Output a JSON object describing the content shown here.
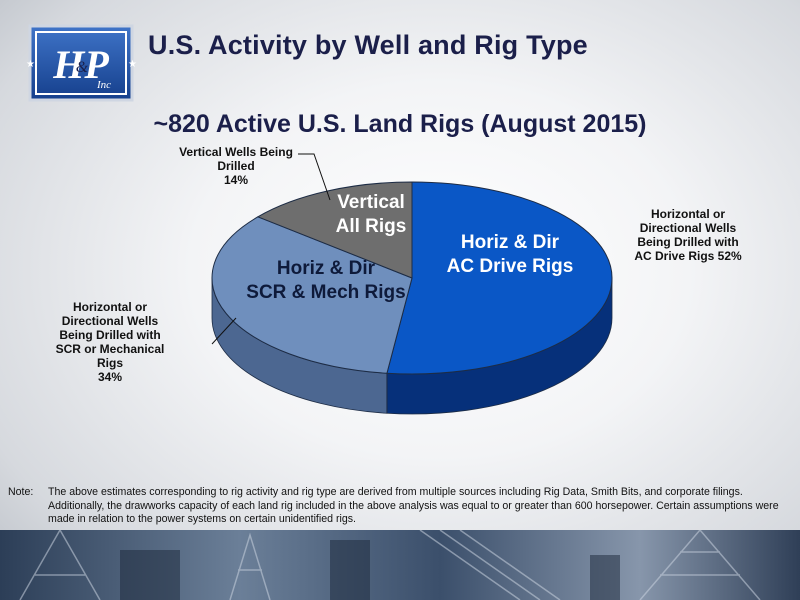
{
  "header": {
    "logo_text": "H&P Inc",
    "title": "U.S. Activity by Well and Rig Type"
  },
  "chart_data": {
    "type": "pie",
    "title": "~820 Active U.S. Land Rigs (August 2015)",
    "slices": [
      {
        "label": "Horiz & Dir AC Drive Rigs",
        "inner_lines": [
          "Horiz & Dir",
          "AC Drive Rigs"
        ],
        "callout_lines": [
          "Horizontal or",
          "Directional Wells",
          "Being Drilled with",
          "AC Drive Rigs 52%"
        ],
        "value": 52,
        "color": "#0a57c6",
        "side": "#06307a"
      },
      {
        "label": "Horiz & Dir SCR & Mech Rigs",
        "inner_lines": [
          "Horiz & Dir",
          "SCR & Mech Rigs"
        ],
        "callout_lines": [
          "Horizontal or",
          "Directional Wells",
          "Being Drilled with",
          "SCR or Mechanical",
          "Rigs",
          "34%"
        ],
        "value": 34,
        "color": "#6f8fbd",
        "side": "#4c6791"
      },
      {
        "label": "Vertical All Rigs",
        "inner_lines": [
          "Vertical",
          "All Rigs"
        ],
        "callout_lines": [
          "Vertical Wells Being",
          "Drilled",
          "14%"
        ],
        "value": 14,
        "color": "#6e6e6e",
        "side": "#474747"
      }
    ]
  },
  "note": {
    "label": "Note:",
    "text": "The above estimates corresponding to rig activity and rig type are derived from multiple sources including Rig Data, Smith Bits, and corporate filings. Additionally, the drawworks capacity of each land rig included in the above analysis was equal to or greater than 600 horsepower. Certain assumptions were made in relation to the power systems on certain unidentified rigs."
  },
  "colors": {
    "title": "#1b1f4a",
    "logo_blue": "#1e4fa3"
  }
}
